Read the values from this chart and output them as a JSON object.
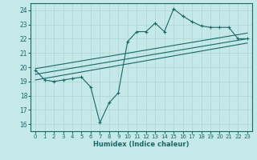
{
  "xlabel": "Humidex (Indice chaleur)",
  "xlim": [
    -0.5,
    23.5
  ],
  "ylim": [
    15.5,
    24.5
  ],
  "xticks": [
    0,
    1,
    2,
    3,
    4,
    5,
    6,
    7,
    8,
    9,
    10,
    11,
    12,
    13,
    14,
    15,
    16,
    17,
    18,
    19,
    20,
    21,
    22,
    23
  ],
  "yticks": [
    16,
    17,
    18,
    19,
    20,
    21,
    22,
    23,
    24
  ],
  "bg_color": "#c5e8e8",
  "grid_color": "#aed4d4",
  "line_color": "#1a6868",
  "line1_x": [
    0,
    1,
    2,
    3,
    4,
    5,
    6,
    7,
    8,
    9,
    10,
    11,
    12,
    13,
    14,
    15,
    16,
    17,
    18,
    19,
    20,
    21,
    22,
    23
  ],
  "line1_y": [
    19.8,
    19.1,
    19.0,
    19.1,
    19.2,
    19.3,
    18.6,
    16.1,
    17.5,
    18.2,
    21.8,
    22.5,
    22.5,
    23.1,
    22.5,
    24.1,
    23.6,
    23.2,
    22.9,
    22.8,
    22.8,
    22.8,
    22.0,
    22.0
  ],
  "line2_x": [
    0,
    23
  ],
  "line2_y": [
    19.5,
    22.0
  ],
  "line3_x": [
    0,
    23
  ],
  "line3_y": [
    19.1,
    21.7
  ],
  "line4_x": [
    0,
    23
  ],
  "line4_y": [
    19.9,
    22.4
  ]
}
